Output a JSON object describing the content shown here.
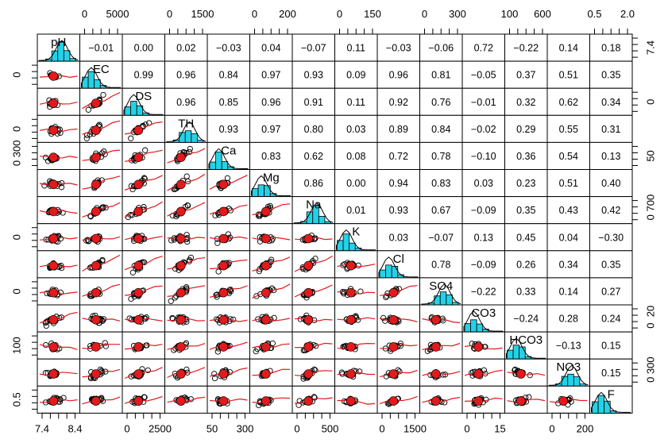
{
  "chart_data": {
    "type": "scatter-matrix",
    "variables": [
      "pH",
      "EC",
      "DS",
      "TH",
      "Ca",
      "Mg",
      "Na",
      "K",
      "Cl",
      "SO4",
      "CO3",
      "HCO3",
      "NO3",
      "F"
    ],
    "correlations": [
      [
        1,
        -0.01,
        0.0,
        0.02,
        -0.03,
        0.04,
        -0.07,
        0.11,
        -0.03,
        -0.06,
        0.72,
        -0.22,
        0.14,
        0.18
      ],
      [
        -0.01,
        1,
        0.99,
        0.96,
        0.84,
        0.97,
        0.93,
        0.09,
        0.96,
        0.81,
        -0.05,
        0.37,
        0.51,
        0.35
      ],
      [
        0.0,
        0.99,
        1,
        0.96,
        0.85,
        0.96,
        0.91,
        0.11,
        0.92,
        0.76,
        -0.01,
        0.32,
        0.62,
        0.34
      ],
      [
        0.02,
        0.96,
        0.96,
        1,
        0.93,
        0.97,
        0.8,
        0.03,
        0.89,
        0.84,
        -0.02,
        0.29,
        0.55,
        0.31
      ],
      [
        -0.03,
        0.84,
        0.85,
        0.93,
        1,
        0.83,
        0.62,
        0.08,
        0.72,
        0.78,
        -0.1,
        0.36,
        0.54,
        0.13
      ],
      [
        0.04,
        0.97,
        0.96,
        0.97,
        0.83,
        1,
        0.86,
        0.0,
        0.94,
        0.83,
        0.03,
        0.23,
        0.51,
        0.4
      ],
      [
        -0.07,
        0.93,
        0.91,
        0.8,
        0.62,
        0.86,
        1,
        0.01,
        0.93,
        0.67,
        -0.09,
        0.35,
        0.43,
        0.42
      ],
      [
        0.11,
        0.09,
        0.11,
        0.03,
        0.08,
        0.0,
        0.01,
        1,
        0.03,
        -0.07,
        0.13,
        0.45,
        0.04,
        -0.3
      ],
      [
        -0.03,
        0.96,
        0.92,
        0.89,
        0.72,
        0.94,
        0.93,
        0.03,
        1,
        0.78,
        -0.09,
        0.26,
        0.34,
        0.35
      ],
      [
        -0.06,
        0.81,
        0.76,
        0.84,
        0.78,
        0.83,
        0.67,
        -0.07,
        0.78,
        1,
        -0.22,
        0.33,
        0.14,
        0.27
      ],
      [
        0.72,
        -0.05,
        -0.01,
        -0.02,
        -0.1,
        0.03,
        -0.09,
        0.13,
        -0.09,
        -0.22,
        1,
        -0.24,
        0.28,
        0.24
      ],
      [
        -0.22,
        0.37,
        0.32,
        0.29,
        0.36,
        0.23,
        0.35,
        0.45,
        0.26,
        0.33,
        -0.24,
        1,
        -0.13,
        0.15
      ],
      [
        0.14,
        0.51,
        0.62,
        0.55,
        0.54,
        0.51,
        0.43,
        0.04,
        0.34,
        0.14,
        0.28,
        -0.13,
        1,
        0.15
      ],
      [
        0.18,
        0.35,
        0.34,
        0.31,
        0.13,
        0.4,
        0.42,
        -0.3,
        0.35,
        0.27,
        0.24,
        0.15,
        0.15,
        1
      ]
    ],
    "axis_top": [
      {
        "col": 1,
        "labels": [
          "0",
          "5000"
        ]
      },
      {
        "col": 3,
        "labels": [
          "0",
          "1500"
        ]
      },
      {
        "col": 5,
        "labels": [
          "0",
          "200"
        ]
      },
      {
        "col": 7,
        "labels": [
          "0",
          "150"
        ]
      },
      {
        "col": 9,
        "labels": [
          "0",
          "300"
        ]
      },
      {
        "col": 11,
        "labels": [
          "100",
          "600"
        ]
      },
      {
        "col": 13,
        "labels": [
          "0.5",
          "2.0"
        ]
      }
    ],
    "axis_bottom": [
      {
        "col": 0,
        "labels": [
          "7.4",
          "8.4"
        ]
      },
      {
        "col": 2,
        "labels": [
          "0",
          "2500"
        ]
      },
      {
        "col": 4,
        "labels": [
          "50",
          "300"
        ]
      },
      {
        "col": 6,
        "labels": [
          "0",
          "500"
        ]
      },
      {
        "col": 8,
        "labels": [
          "0",
          "1500"
        ]
      },
      {
        "col": 10,
        "labels": [
          "0",
          "15"
        ]
      },
      {
        "col": 12,
        "labels": [
          "0",
          "200"
        ]
      }
    ],
    "axis_left": [
      {
        "row": 1,
        "labels": [
          "0"
        ]
      },
      {
        "row": 3,
        "labels": [
          "0"
        ]
      },
      {
        "row": 4,
        "labels": [
          "0",
          "300"
        ]
      },
      {
        "row": 7,
        "labels": [
          "0"
        ]
      },
      {
        "row": 9,
        "labels": [
          "0"
        ]
      },
      {
        "row": 11,
        "labels": [
          "100"
        ]
      },
      {
        "row": 13,
        "labels": [
          "0.5"
        ]
      }
    ],
    "axis_right": [
      {
        "row": 0,
        "labels": [
          "7.4"
        ]
      },
      {
        "row": 2,
        "labels": [
          "0"
        ]
      },
      {
        "row": 4,
        "labels": [
          "50"
        ]
      },
      {
        "row": 6,
        "labels": [
          "0",
          "700"
        ]
      },
      {
        "row": 10,
        "labels": [
          "0",
          "20"
        ]
      },
      {
        "row": 12,
        "labels": [
          "0",
          "300"
        ]
      }
    ],
    "colors": {
      "histogram": "#22d3e8",
      "smooth_line": "#e31a1c",
      "centroid": "#e31a1c"
    }
  }
}
